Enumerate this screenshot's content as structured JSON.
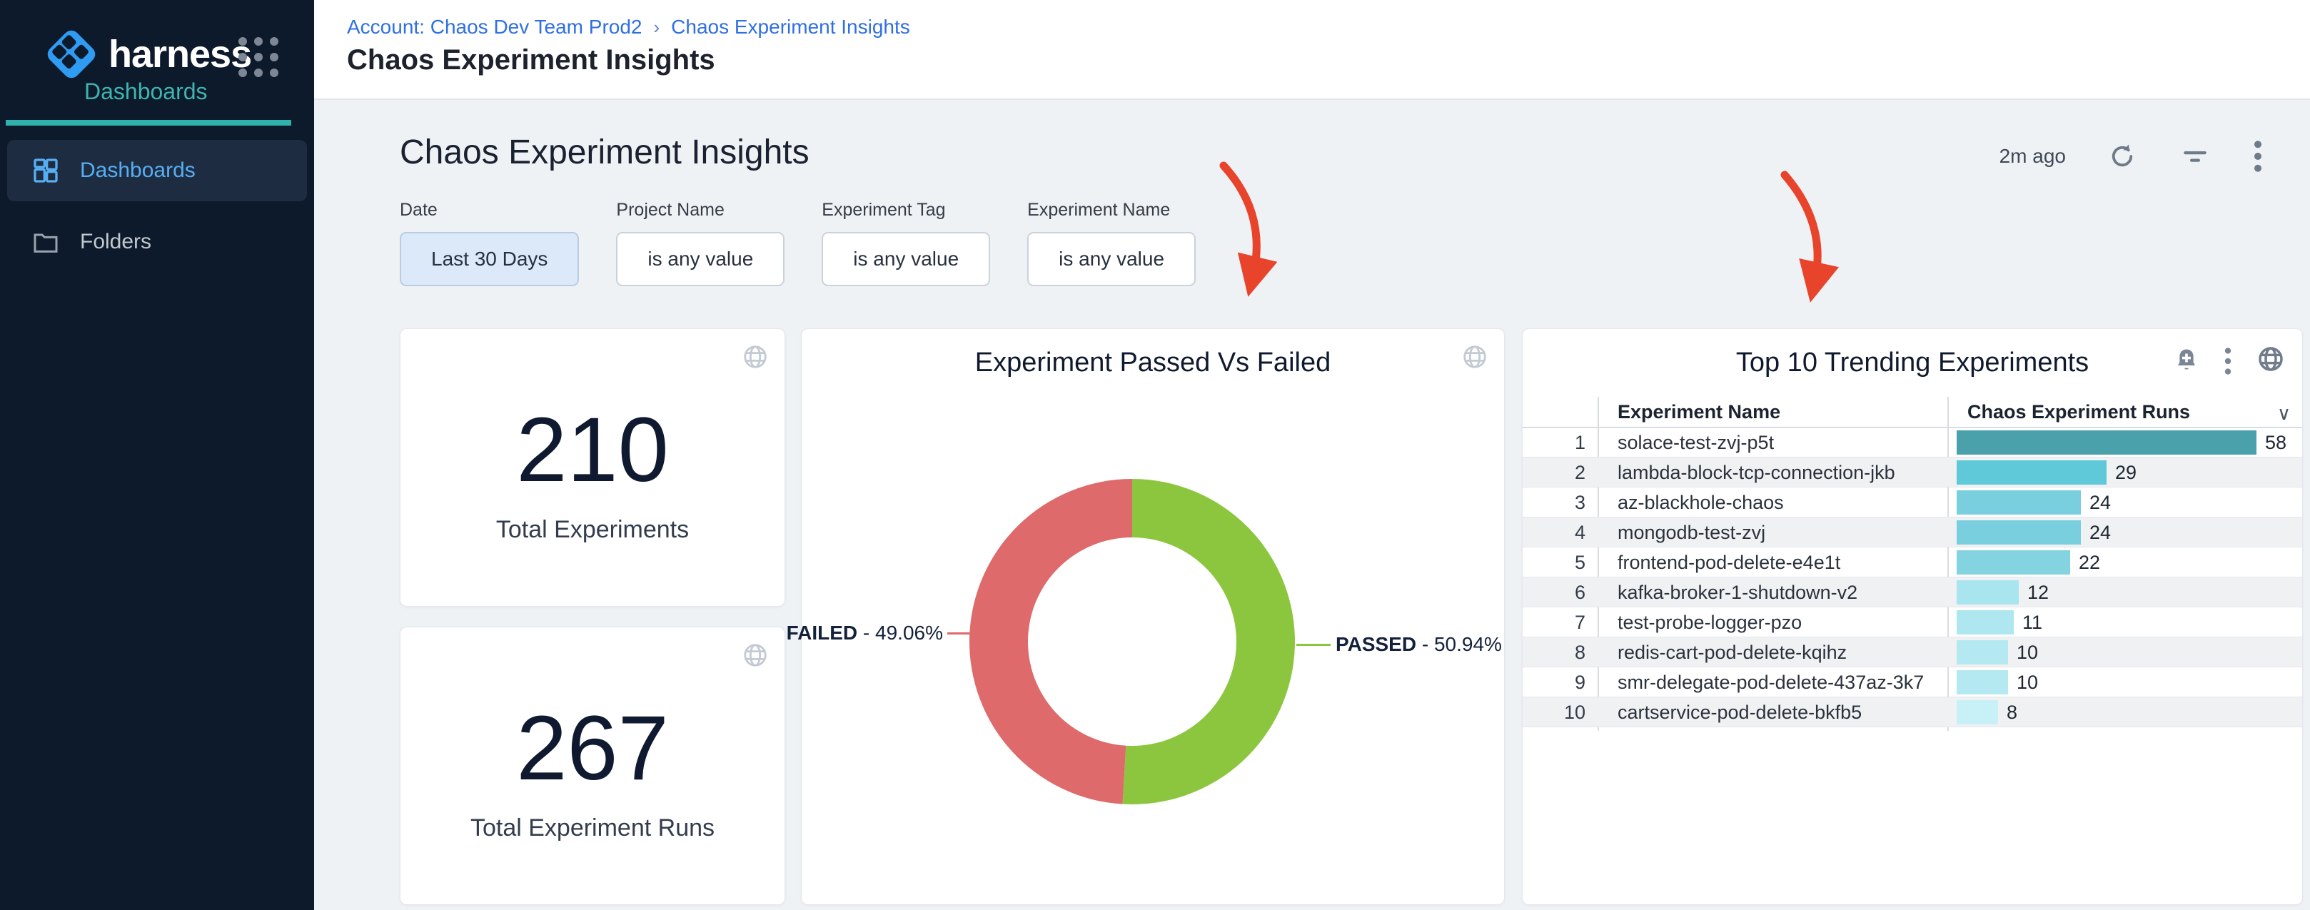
{
  "brand": {
    "name": "harness",
    "subtitle": "Dashboards"
  },
  "sidebar": {
    "items": [
      {
        "label": "Dashboards",
        "active": true
      },
      {
        "label": "Folders",
        "active": false
      }
    ]
  },
  "topbar": {
    "breadcrumb": {
      "account": "Account: Chaos Dev Team Prod2",
      "separator": "›",
      "page": "Chaos Experiment Insights"
    },
    "title": "Chaos Experiment Insights"
  },
  "main": {
    "title": "Chaos Experiment Insights",
    "last_updated": "2m ago",
    "filters": [
      {
        "label": "Date",
        "value": "Last 30 Days",
        "active": true
      },
      {
        "label": "Project Name",
        "value": "is any value",
        "active": false
      },
      {
        "label": "Experiment Tag",
        "value": "is any value",
        "active": false
      },
      {
        "label": "Experiment Name",
        "value": "is any value",
        "active": false
      }
    ]
  },
  "stats": [
    {
      "value": "210",
      "label": "Total Experiments"
    },
    {
      "value": "267",
      "label": "Total Experiment Runs"
    }
  ],
  "colors": {
    "accent_teal": "#3db5b0",
    "active_blue": "#57aef2",
    "breadcrumb_blue": "#2f6fe4",
    "arrow_red": "#e8432b",
    "donut_failed": "#de6a6b",
    "donut_passed": "#8cc63f"
  },
  "chart_data": [
    {
      "type": "pie",
      "title": "Experiment Passed Vs Failed",
      "donut": true,
      "slices": [
        {
          "label": "FAILED",
          "value": 49.06,
          "pct_display": "49.06%",
          "color": "#de6a6b"
        },
        {
          "label": "PASSED",
          "value": 50.94,
          "pct_display": "50.94%",
          "color": "#8cc63f"
        }
      ],
      "legend_position": "callout-labels"
    },
    {
      "type": "bar",
      "title": "Top 10 Trending Experiments",
      "orientation": "horizontal",
      "columns": [
        "Experiment Name",
        "Chaos Experiment Runs"
      ],
      "xlim": [
        0,
        58
      ],
      "rows": [
        {
          "rank": "1",
          "name": "solace-test-zvj-p5t",
          "runs": 58,
          "color": "#4aa1ac"
        },
        {
          "rank": "2",
          "name": "lambda-block-tcp-connection-jkb",
          "runs": 29,
          "color": "#5fc8d9"
        },
        {
          "rank": "3",
          "name": "az-blackhole-chaos",
          "runs": 24,
          "color": "#79cfdd"
        },
        {
          "rank": "4",
          "name": "mongodb-test-zvj",
          "runs": 24,
          "color": "#79cfdd"
        },
        {
          "rank": "5",
          "name": "frontend-pod-delete-e4e1t",
          "runs": 22,
          "color": "#83d3e0"
        },
        {
          "rank": "6",
          "name": "kafka-broker-1-shutdown-v2",
          "runs": 12,
          "color": "#a9e5ee"
        },
        {
          "rank": "7",
          "name": "test-probe-logger-pzo",
          "runs": 11,
          "color": "#aee7f0"
        },
        {
          "rank": "8",
          "name": "redis-cart-pod-delete-kqihz",
          "runs": 10,
          "color": "#b5e9f1"
        },
        {
          "rank": "9",
          "name": "smr-delegate-pod-delete-437az-3k7",
          "runs": 10,
          "color": "#b5e9f1"
        },
        {
          "rank": "10",
          "name": "cartservice-pod-delete-bkfb5",
          "runs": 8,
          "color": "#c7f0f7"
        }
      ]
    }
  ]
}
